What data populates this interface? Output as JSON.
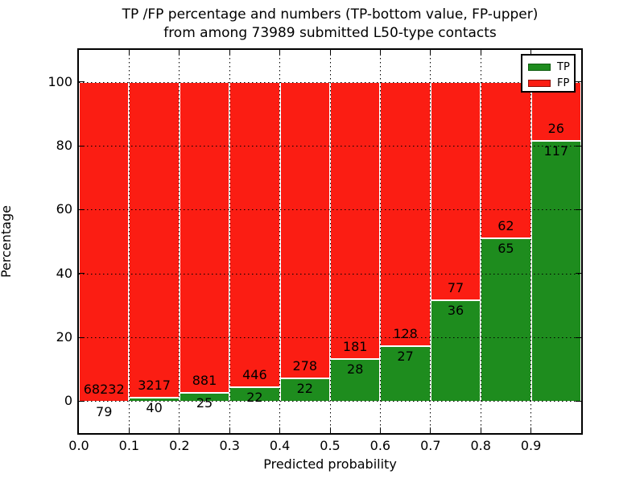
{
  "figure": {
    "title_line1": "TP /FP percentage and numbers (TP-bottom value, FP-upper)",
    "title_line2": "from among 73989 submitted L50-type contacts",
    "xlabel": "Predicted probability",
    "ylabel": "Percentage"
  },
  "legend": {
    "items": [
      {
        "label": "TP",
        "color": "#1e8c1e",
        "edge": "#0f5c0f"
      },
      {
        "label": "FP",
        "color": "#fb1d13",
        "edge": "#8f100a"
      }
    ]
  },
  "chart_data": {
    "type": "bar",
    "stacked": true,
    "normalized_to_percent": true,
    "title": "TP /FP percentage and numbers (TP-bottom value, FP-upper) from among 73989 submitted L50-type contacts",
    "xlabel": "Predicted probability",
    "ylabel": "Percentage",
    "total_contacts": 73989,
    "bin_width": 0.1,
    "categories": [
      "0.0",
      "0.1",
      "0.2",
      "0.3",
      "0.4",
      "0.5",
      "0.6",
      "0.7",
      "0.8",
      "0.9"
    ],
    "series": [
      {
        "name": "TP",
        "color": "#1e8c1e",
        "counts": [
          79,
          40,
          25,
          22,
          22,
          28,
          27,
          36,
          65,
          117
        ]
      },
      {
        "name": "FP",
        "color": "#fb1d13",
        "counts": [
          68232,
          3217,
          881,
          446,
          278,
          181,
          128,
          77,
          62,
          26
        ]
      }
    ],
    "tp_percent_of_bin": [
      0.12,
      1.23,
      2.76,
      4.7,
      7.33,
      13.4,
      17.42,
      31.86,
      51.18,
      81.82
    ],
    "xticks": [
      "0.0",
      "0.1",
      "0.2",
      "0.3",
      "0.4",
      "0.5",
      "0.6",
      "0.7",
      "0.8",
      "0.9"
    ],
    "yticks": [
      0,
      20,
      40,
      60,
      80,
      100
    ],
    "xlim": [
      0,
      1
    ],
    "ylim": [
      -10,
      110
    ],
    "grid": "dotted",
    "legend_position": "upper right"
  }
}
